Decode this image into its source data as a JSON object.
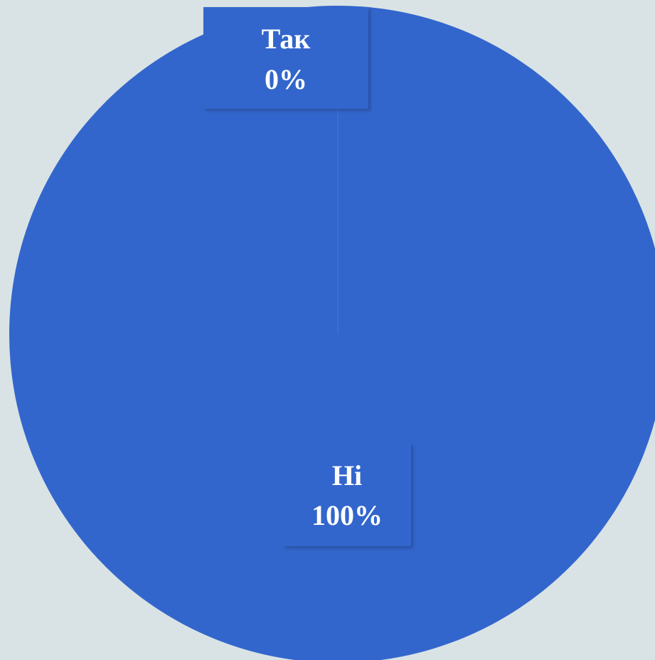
{
  "background": "#d9e3e5",
  "chart_data": {
    "type": "pie",
    "categories": [
      "Так",
      "Ні"
    ],
    "values": [
      0,
      100
    ],
    "colors": [
      "#4472c4",
      "#3366cc"
    ],
    "data_labels": [
      {
        "category": "Так",
        "percent": "0%"
      },
      {
        "category": "Ні",
        "percent": "100%"
      }
    ],
    "legend": "none"
  }
}
